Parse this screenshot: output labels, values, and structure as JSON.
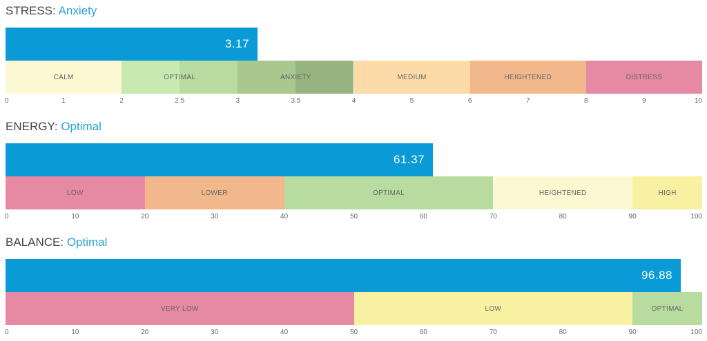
{
  "chart_data": [
    {
      "type": "bar",
      "title_label": "STRESS:",
      "status": "Anxiety",
      "value": 3.17,
      "value_label": "3.17",
      "axis_type": "piecewise",
      "ticks": [
        {
          "label": "0",
          "value": 0
        },
        {
          "label": "1",
          "value": 1
        },
        {
          "label": "2",
          "value": 2
        },
        {
          "label": "2.5",
          "value": 2.5
        },
        {
          "label": "3",
          "value": 3
        },
        {
          "label": "3.5",
          "value": 3.5
        },
        {
          "label": "4",
          "value": 4
        },
        {
          "label": "5",
          "value": 5
        },
        {
          "label": "6",
          "value": 6
        },
        {
          "label": "7",
          "value": 7
        },
        {
          "label": "8",
          "value": 8
        },
        {
          "label": "9",
          "value": 9
        },
        {
          "label": "10",
          "value": 10
        }
      ],
      "bands": [
        {
          "label": "CALM",
          "from": 0,
          "to": 2,
          "color": "#fbf8d2"
        },
        {
          "label": "OPTIMAL",
          "from": 2,
          "to": 3,
          "colors": [
            "#c8eab0",
            "#b8dca0"
          ]
        },
        {
          "label": "ANXIETY",
          "from": 3,
          "to": 4,
          "colors": [
            "#a8c890",
            "#98b480"
          ]
        },
        {
          "label": "MEDIUM",
          "from": 4,
          "to": 6,
          "color": "#fcdba8"
        },
        {
          "label": "HEIGHTENED",
          "from": 6,
          "to": 8,
          "color": "#f2b88c"
        },
        {
          "label": "DISTRESS",
          "from": 8,
          "to": 10,
          "color": "#e689a2"
        }
      ]
    },
    {
      "type": "bar",
      "title_label": "ENERGY:",
      "status": "Optimal",
      "value": 61.37,
      "value_label": "61.37",
      "axis_type": "linear",
      "ticks": [
        {
          "label": "0",
          "value": 0
        },
        {
          "label": "10",
          "value": 10
        },
        {
          "label": "20",
          "value": 20
        },
        {
          "label": "30",
          "value": 30
        },
        {
          "label": "40",
          "value": 40
        },
        {
          "label": "50",
          "value": 50
        },
        {
          "label": "60",
          "value": 60
        },
        {
          "label": "70",
          "value": 70
        },
        {
          "label": "80",
          "value": 80
        },
        {
          "label": "90",
          "value": 90
        },
        {
          "label": "100",
          "value": 100
        }
      ],
      "bands": [
        {
          "label": "LOW",
          "from": 0,
          "to": 20,
          "color": "#e689a2"
        },
        {
          "label": "LOWER",
          "from": 20,
          "to": 40,
          "color": "#f2b88c"
        },
        {
          "label": "OPTIMAL",
          "from": 40,
          "to": 70,
          "color": "#b8dca0"
        },
        {
          "label": "HEIGHTENED",
          "from": 70,
          "to": 90,
          "color": "#fcf8d2"
        },
        {
          "label": "HIGH",
          "from": 90,
          "to": 100,
          "color": "#f9f1a2"
        }
      ]
    },
    {
      "type": "bar",
      "title_label": "BALANCE:",
      "status": "Optimal",
      "value": 96.88,
      "value_label": "96.88",
      "axis_type": "linear",
      "ticks": [
        {
          "label": "0",
          "value": 0
        },
        {
          "label": "10",
          "value": 10
        },
        {
          "label": "20",
          "value": 20
        },
        {
          "label": "30",
          "value": 30
        },
        {
          "label": "40",
          "value": 40
        },
        {
          "label": "50",
          "value": 50
        },
        {
          "label": "60",
          "value": 60
        },
        {
          "label": "70",
          "value": 70
        },
        {
          "label": "80",
          "value": 80
        },
        {
          "label": "90",
          "value": 90
        },
        {
          "label": "100",
          "value": 100
        }
      ],
      "bands": [
        {
          "label": "VERY LOW",
          "from": 0,
          "to": 50,
          "color": "#e689a2"
        },
        {
          "label": "LOW",
          "from": 50,
          "to": 90,
          "color": "#f9f1a2"
        },
        {
          "label": "OPTIMAL",
          "from": 90,
          "to": 100,
          "color": "#b8dca0"
        }
      ]
    }
  ],
  "colors": {
    "value_bar": "#0a9ad8",
    "status_text": "#2aa2d6",
    "title_text": "#444444"
  }
}
